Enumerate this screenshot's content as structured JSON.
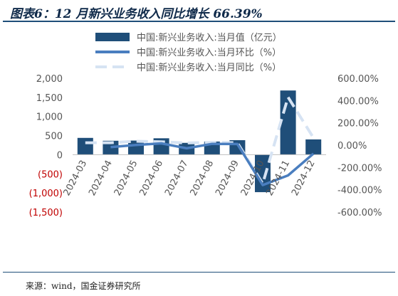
{
  "figure": {
    "title": "图表6：12 月新兴业务收入同比增长 66.39%",
    "source": "来源：wind，国金证券研究所"
  },
  "colors": {
    "bar": "#1f4e79",
    "mom_line": "#4a7ebf",
    "yoy_line": "#d6e3f3",
    "negative_tick": "#c00000",
    "text": "#555555"
  },
  "chart_data": {
    "type": "bar",
    "title": "",
    "xlabel": "",
    "ylabel": "",
    "categories": [
      "2024-03",
      "2024-04",
      "2024-05",
      "2024-06",
      "2024-07",
      "2024-08",
      "2024-09",
      "2024-10",
      "2024-11",
      "2024-12"
    ],
    "series": [
      {
        "name": "中国:新兴业务收入:当月值（亿元）",
        "type": "bar",
        "axis": "left",
        "values": [
          440,
          365,
          370,
          430,
          310,
          345,
          380,
          -980,
          1680,
          400
        ]
      },
      {
        "name": "中国:新兴业务收入:当月环比（%）",
        "type": "line",
        "axis": "right",
        "values": [
          null,
          -17.0,
          1.4,
          16.2,
          -27.9,
          11.3,
          10.1,
          -357.9,
          -271.4,
          -76.2
        ]
      },
      {
        "name": "中国:新兴业务收入:当月同比（%）",
        "type": "line",
        "style": "dashed",
        "axis": "right",
        "values": [
          22,
          22,
          35,
          30,
          20,
          25,
          22,
          -345,
          430,
          66.39
        ]
      }
    ],
    "y_left": {
      "ylim": [
        -1500,
        2000
      ],
      "ticks": [
        2000,
        1500,
        1000,
        500,
        0,
        -500,
        -1000,
        -1500
      ],
      "tick_labels": [
        "2,000",
        "1,500",
        "1,000",
        "500",
        "0",
        "(500)",
        "(1,000)",
        "(1,500)"
      ]
    },
    "y_right": {
      "ylim": [
        -600,
        600
      ],
      "ticks": [
        600,
        400,
        200,
        0,
        -200,
        -400,
        -600
      ],
      "tick_labels": [
        "600.00%",
        "400.00%",
        "200.00%",
        "0.00%",
        "-200.00%",
        "-400.00%",
        "-600.00%"
      ]
    },
    "legend_position": "top",
    "grid": false
  }
}
